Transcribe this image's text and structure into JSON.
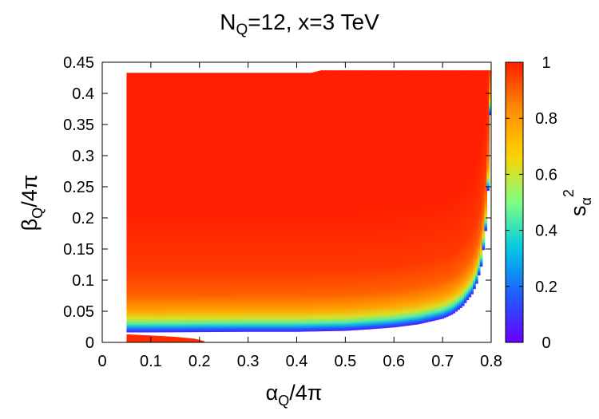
{
  "chart_data": {
    "type": "heatmap",
    "title": {
      "main": "N",
      "sub": "Q",
      "rest": "=12, x=3 TeV"
    },
    "xlabel": {
      "symbol": "α",
      "sub": "Q",
      "rest": "/4π"
    },
    "ylabel": {
      "symbol": "β",
      "sub": "Q",
      "rest": "/4π"
    },
    "colorbar_label": {
      "symbol": "s",
      "sub": "α",
      "sup": "2"
    },
    "xlim": [
      0,
      0.8
    ],
    "ylim": [
      0,
      0.45
    ],
    "clim": [
      0,
      1
    ],
    "x_ticks": [
      "0",
      "0.1",
      "0.2",
      "0.3",
      "0.4",
      "0.5",
      "0.6",
      "0.7",
      "0.8"
    ],
    "y_ticks": [
      "0",
      "0.05",
      "0.1",
      "0.15",
      "0.2",
      "0.25",
      "0.3",
      "0.35",
      "0.4",
      "0.45"
    ],
    "colorbar_ticks": [
      "0",
      "0.2",
      "0.4",
      "0.6",
      "0.8",
      "1"
    ],
    "colormap": [
      "#6a00ff",
      "#1e5bff",
      "#00c8e6",
      "#7dff82",
      "#ffd200",
      "#ff8c00",
      "#ff1e00"
    ],
    "colormap_name": "rainbow",
    "grid": false,
    "region_upper": {
      "x_min": 0.05,
      "y_bottom_at_x": [
        [
          0.05,
          0.016
        ],
        [
          0.1,
          0.016
        ],
        [
          0.2,
          0.0165
        ],
        [
          0.3,
          0.017
        ],
        [
          0.4,
          0.017
        ],
        [
          0.5,
          0.0185
        ],
        [
          0.55,
          0.021
        ],
        [
          0.6,
          0.024
        ],
        [
          0.65,
          0.029
        ],
        [
          0.7,
          0.038
        ],
        [
          0.72,
          0.045
        ],
        [
          0.74,
          0.057
        ],
        [
          0.76,
          0.077
        ],
        [
          0.77,
          0.095
        ],
        [
          0.78,
          0.125
        ],
        [
          0.79,
          0.19
        ],
        [
          0.795,
          0.28
        ],
        [
          0.8,
          0.44
        ]
      ],
      "y_top_at_x": [
        [
          0.05,
          0.433
        ],
        [
          0.43,
          0.433
        ],
        [
          0.45,
          0.437
        ],
        [
          0.8,
          0.437
        ]
      ],
      "s2_profile_above_edge": [
        [
          0.0,
          0.05
        ],
        [
          0.004,
          0.15
        ],
        [
          0.008,
          0.28
        ],
        [
          0.014,
          0.45
        ],
        [
          0.022,
          0.62
        ],
        [
          0.035,
          0.78
        ],
        [
          0.06,
          0.9
        ],
        [
          0.1,
          0.96
        ],
        [
          0.2,
          1.0
        ]
      ]
    },
    "region_lower": {
      "x_min": 0.05,
      "y_min": 0.0,
      "y_top_at_x": [
        [
          0.05,
          0.013
        ],
        [
          0.1,
          0.011
        ],
        [
          0.15,
          0.009
        ],
        [
          0.19,
          0.006
        ],
        [
          0.21,
          0.002
        ]
      ],
      "s2": 0.98
    }
  }
}
